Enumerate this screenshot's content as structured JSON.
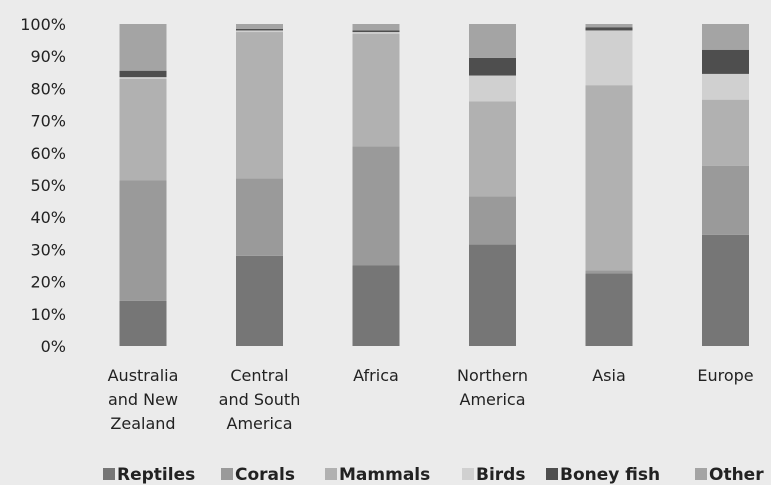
{
  "chart_data": {
    "type": "bar",
    "stacked": true,
    "percent": true,
    "title": "",
    "xlabel": "",
    "ylabel": "",
    "ylim": [
      0,
      100
    ],
    "yticks": [
      "0%",
      "10%",
      "20%",
      "30%",
      "40%",
      "50%",
      "60%",
      "70%",
      "80%",
      "90%",
      "100%"
    ],
    "categories": [
      [
        "Australia",
        "and New",
        "Zealand"
      ],
      [
        "Central",
        "and South",
        "America"
      ],
      [
        "Africa"
      ],
      [
        "Northern",
        "America"
      ],
      [
        "Asia"
      ],
      [
        "Europe"
      ]
    ],
    "series": [
      {
        "name": "Reptiles",
        "color": "#767676",
        "values": [
          14,
          28,
          25,
          31.5,
          22.5,
          34.5
        ]
      },
      {
        "name": "Corals",
        "color": "#9a9a9a",
        "values": [
          37.5,
          24,
          37,
          15,
          1,
          21.5
        ]
      },
      {
        "name": "Mammals",
        "color": "#b1b1b1",
        "values": [
          31.5,
          45.5,
          35,
          29.5,
          57.5,
          20.5
        ]
      },
      {
        "name": "Birds",
        "color": "#d0d0d0",
        "values": [
          0.5,
          0.5,
          0.5,
          8,
          17,
          8
        ]
      },
      {
        "name": "Boney fish",
        "color": "#4e4e4e",
        "values": [
          2,
          0.5,
          0.5,
          5.5,
          1,
          7.5
        ]
      },
      {
        "name": "Other",
        "color": "#a4a4a4",
        "values": [
          14.5,
          1.5,
          2,
          10.5,
          1,
          8
        ]
      }
    ],
    "legend_position": "bottom",
    "grid": false
  }
}
